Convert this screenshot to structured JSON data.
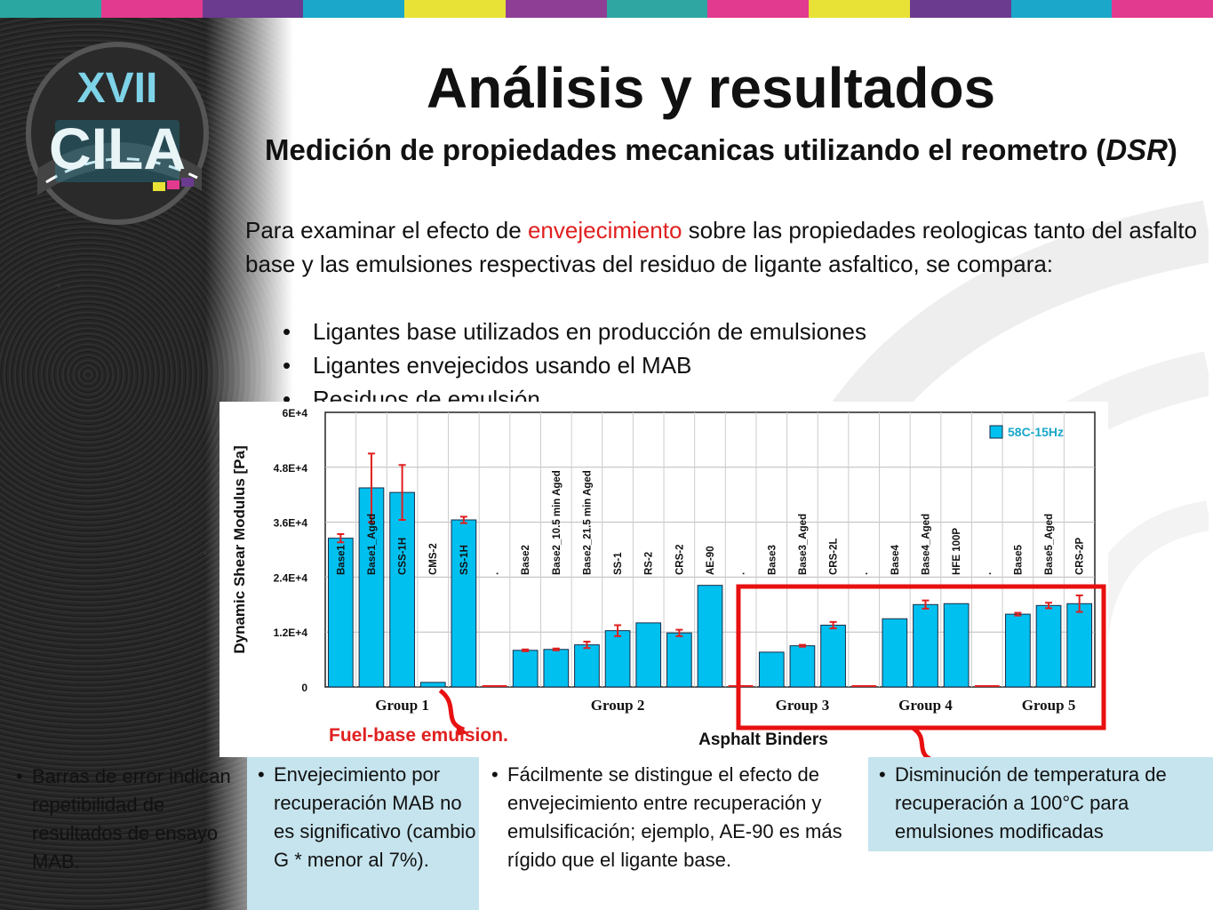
{
  "slide": {
    "title": "Análisis y resultados",
    "subtitle_text": "Medición de propiedades mecanicas utilizando el reometro (",
    "subtitle_italic": "DSR",
    "subtitle_end": ")",
    "intro_part1": "Para examinar el efecto de ",
    "intro_highlight": "envejecimiento",
    "intro_part2": "  sobre las propiedades reologicas  tanto del asfalto base y las emulsiones respectivas del residuo de ligante asfaltico, se compara:",
    "bullets": [
      "Ligantes base utilizados en producción de emulsiones",
      "Ligantes envejecidos usando el MAB",
      "Residuos de emulsión"
    ],
    "logo_text_top": "XVII",
    "logo_text_bottom": "CILA",
    "fuel_note": "Fuel-base emulsion.",
    "notes": [
      "Barras de error indican repetibilidad de resultados de ensayo MAB.",
      "Envejecimiento por recuperación MAB no es significativo (cambio  G * menor al 7%).",
      "Fácilmente se distingue el efecto de envejecimiento entre recuperación y emulsificación; ejemplo, AE-90 es más rígido que el ligante base.",
      "Disminución de temperatura de recuperación a 100°C para emulsiones modificadas"
    ]
  },
  "colors": {
    "bar": "#00c0f0",
    "error": "#e02020",
    "highlight_box": "#e81010",
    "top_stripes": [
      "#2aa7a0",
      "#e23a8e",
      "#6b3b8f",
      "#1aa7c9",
      "#e8e236",
      "#8e3f95",
      "#2fa6a1",
      "#e23a8e",
      "#e8e236",
      "#6b3b8f",
      "#1aa7c9",
      "#e23a8e"
    ]
  },
  "chart_data": {
    "type": "bar",
    "ylabel": "Dynamic Shear Modulus [Pa]",
    "xlabel": "Asphalt Binders",
    "legend": "58C-15Hz",
    "legend_position": "top-right",
    "ylim": [
      0,
      60000
    ],
    "yticks": [
      "0",
      "1.2E+4",
      "2.4E+4",
      "3.6E+4",
      "4.8E+4",
      "6E+4"
    ],
    "groups": [
      "Group 1",
      "Group 2",
      "Group 3",
      "Group 4",
      "Group 5"
    ],
    "categories": [
      "Base1",
      "Base1_Aged",
      "CSS-1H",
      "CMS-2",
      "SS-1H",
      ".",
      "Base2",
      "Base2_10.5 min Aged",
      "Base2_21.5 min Aged",
      "SS-1",
      "RS-2",
      "CRS-2",
      "AE-90",
      ".",
      "Base3",
      "Base3_Aged",
      "CRS-2L",
      ".",
      "Base4",
      "Base4_Aged",
      "HFE 100P",
      ".",
      "Base5",
      "Base5_Aged",
      "CRS-2P"
    ],
    "category_group": [
      0,
      0,
      0,
      0,
      0,
      -1,
      1,
      1,
      1,
      1,
      1,
      1,
      1,
      -1,
      2,
      2,
      2,
      -1,
      3,
      3,
      3,
      -1,
      4,
      4,
      4
    ],
    "values": [
      32500,
      43500,
      42500,
      1000,
      36500,
      0,
      8000,
      8200,
      9200,
      12300,
      14000,
      11800,
      22200,
      0,
      7600,
      9000,
      13500,
      0,
      14900,
      18000,
      18200,
      0,
      15900,
      17800,
      18200
    ],
    "errors": [
      900,
      7500,
      6000,
      0,
      700,
      0,
      200,
      200,
      700,
      1200,
      0,
      700,
      0,
      0,
      0,
      200,
      700,
      0,
      0,
      900,
      0,
      0,
      300,
      600,
      1800
    ],
    "grid": true,
    "highlight_groups": [
      "Group 3",
      "Group 4",
      "Group 5"
    ]
  }
}
